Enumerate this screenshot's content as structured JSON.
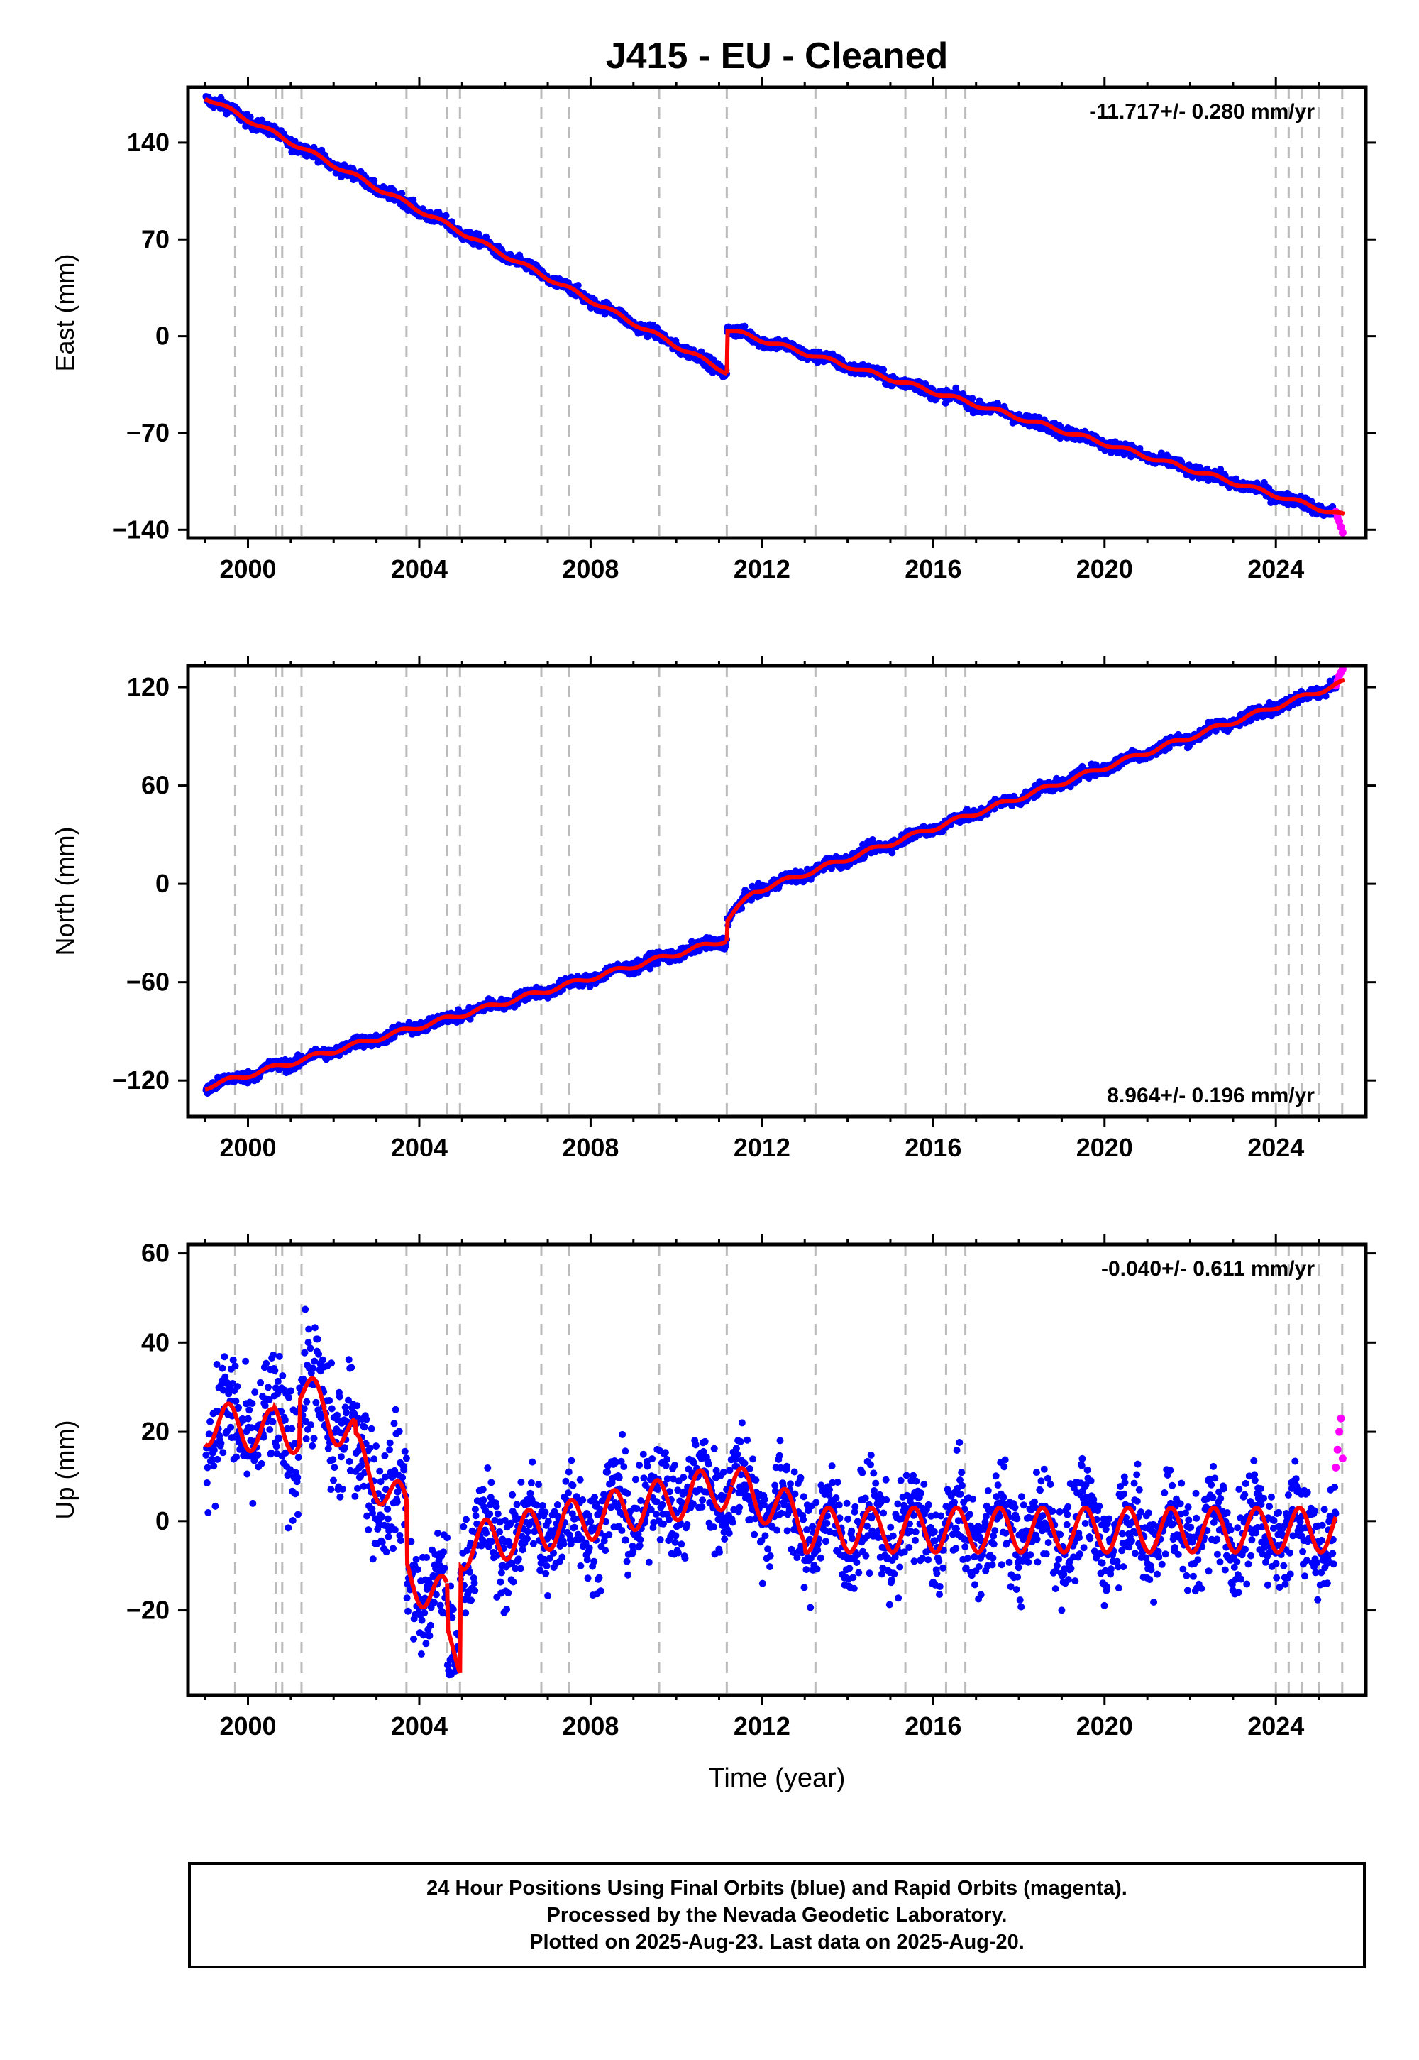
{
  "title": "J415  - EU - Cleaned",
  "xlabel": "Time (year)",
  "colors": {
    "final": "#0000ff",
    "rapid": "#ff00ff",
    "model": "#ff0000",
    "steps": "#bbbbbb"
  },
  "footer": {
    "line1": "24 Hour Positions Using Final Orbits (blue) and Rapid Orbits (magenta).",
    "line2": "Processed by the Nevada Geodetic Laboratory.",
    "line3": "Plotted on 2025-Aug-23. Last data on 2025-Aug-20."
  },
  "chart_data": [
    {
      "type": "scatter",
      "name": "east",
      "ylabel": "East (mm)",
      "rate_text": "-11.717+/- 0.280 mm/yr",
      "rate_position": "top-right",
      "xlim": [
        1998.6,
        2026.1
      ],
      "ylim": [
        -146,
        180
      ],
      "xticks": [
        2000,
        2004,
        2008,
        2012,
        2016,
        2020,
        2024
      ],
      "yticks": [
        140,
        70,
        0,
        -70,
        -140
      ],
      "yticklabels": [
        "140",
        "70",
        "0",
        "−70",
        "−140"
      ],
      "step_epochs": [
        1999.7,
        2000.65,
        2000.8,
        2001.25,
        2003.7,
        2004.65,
        2004.95,
        2006.85,
        2007.5,
        2009.6,
        2011.18,
        2013.25,
        2015.35,
        2016.3,
        2016.75,
        2024.0,
        2024.3,
        2024.6,
        2025.0,
        2025.55
      ],
      "model": {
        "segments": [
          {
            "x0": 1999.0,
            "x1": 2011.18,
            "y0": 173,
            "y1": -26
          },
          {
            "x0": 2011.18,
            "x1": 2025.6,
            "y0": 5,
            "y1": -130
          }
        ],
        "annual_amp": 1.5
      },
      "noise": 3,
      "rapid": {
        "x0": 2025.4,
        "values": [
          -127,
          -131,
          -134,
          -138,
          -142
        ]
      }
    },
    {
      "type": "scatter",
      "name": "north",
      "ylabel": "North (mm)",
      "rate_text": "8.964+/- 0.196 mm/yr",
      "rate_position": "bottom-right",
      "xlim": [
        1998.6,
        2026.1
      ],
      "ylim": [
        -142,
        133
      ],
      "xticks": [
        2000,
        2004,
        2008,
        2012,
        2016,
        2020,
        2024
      ],
      "yticks": [
        120,
        60,
        0,
        -60,
        -120
      ],
      "yticklabels": [
        "120",
        "60",
        "0",
        "−60",
        "−120"
      ],
      "step_epochs": [
        1999.7,
        2000.65,
        2000.8,
        2001.25,
        2003.7,
        2004.65,
        2004.95,
        2006.85,
        2007.5,
        2009.6,
        2011.18,
        2013.25,
        2015.35,
        2016.3,
        2016.75,
        2024.0,
        2024.3,
        2024.6,
        2025.0,
        2025.55
      ],
      "model": {
        "segments": [
          {
            "x0": 1999.0,
            "x1": 2011.18,
            "y0": -124,
            "y1": -34
          },
          {
            "x0": 2011.18,
            "x1": 2011.8,
            "y0": -22,
            "y1": -5
          },
          {
            "x0": 2011.8,
            "x1": 2025.6,
            "y0": -5,
            "y1": 123
          }
        ],
        "annual_amp": 1.5
      },
      "noise": 2.5,
      "rapid": {
        "x0": 2025.4,
        "values": [
          121,
          124,
          127,
          129,
          131
        ]
      }
    },
    {
      "type": "scatter",
      "name": "up",
      "ylabel": "Up (mm)",
      "rate_text": "-0.040+/- 0.611 mm/yr",
      "rate_position": "top-right",
      "xlim": [
        1998.6,
        2026.1
      ],
      "ylim": [
        -39,
        62
      ],
      "xticks": [
        2000,
        2004,
        2008,
        2012,
        2016,
        2020,
        2024
      ],
      "yticks": [
        60,
        40,
        20,
        0,
        -20
      ],
      "yticklabels": [
        "60",
        "40",
        "20",
        "0",
        "−20"
      ],
      "step_epochs": [
        1999.7,
        2000.65,
        2000.8,
        2001.25,
        2003.7,
        2004.65,
        2004.95,
        2006.85,
        2007.5,
        2009.6,
        2011.18,
        2013.25,
        2015.35,
        2016.3,
        2016.75,
        2024.0,
        2024.3,
        2024.6,
        2025.0,
        2025.55
      ],
      "model": {
        "segments": [
          {
            "x0": 1999.0,
            "x1": 2000.6,
            "y0": 22,
            "y1": 20
          },
          {
            "x0": 2000.6,
            "x1": 2001.2,
            "y0": 21,
            "y1": 20
          },
          {
            "x0": 2001.2,
            "x1": 2002.5,
            "y0": 30,
            "y1": 18
          },
          {
            "x0": 2002.5,
            "x1": 2003.7,
            "y0": 15,
            "y1": 2
          },
          {
            "x0": 2003.7,
            "x1": 2004.65,
            "y0": -12,
            "y1": -18
          },
          {
            "x0": 2004.65,
            "x1": 2004.95,
            "y0": -28,
            "y1": -30
          },
          {
            "x0": 2004.95,
            "x1": 2011.3,
            "y0": -6,
            "y1": 8
          },
          {
            "x0": 2011.3,
            "x1": 2013.0,
            "y0": 8,
            "y1": 0
          },
          {
            "x0": 2013.0,
            "x1": 2025.4,
            "y0": -2,
            "y1": -2
          }
        ],
        "annual_amp": 5
      },
      "noise": 8,
      "rapid": {
        "x0": 2025.4,
        "values": [
          12,
          16,
          20,
          23,
          14
        ]
      }
    }
  ]
}
